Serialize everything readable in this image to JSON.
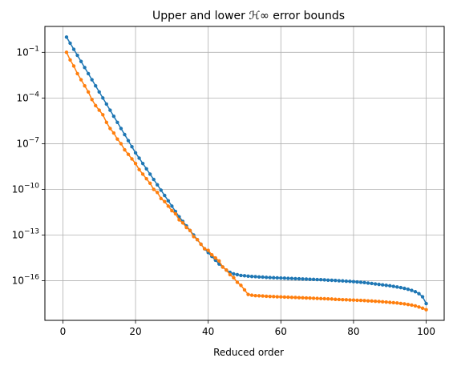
{
  "chart_data": {
    "type": "line",
    "title": "Upper and lower ℋ∞ error bounds",
    "xlabel": "Reduced order",
    "ylabel": "",
    "xlim": [
      -4.95,
      104.95
    ],
    "ylim_log10": [
      -18.6,
      0.7
    ],
    "y_scale": "log",
    "grid": true,
    "xticks": [
      0,
      20,
      40,
      60,
      80,
      100
    ],
    "yticks_exp": [
      -1,
      -4,
      -7,
      -10,
      -13,
      -16
    ],
    "series": [
      {
        "color": "#1f77b4",
        "x": [
          1,
          2,
          3,
          4,
          5,
          6,
          7,
          8,
          9,
          10,
          11,
          12,
          13,
          14,
          15,
          16,
          17,
          18,
          19,
          20,
          21,
          22,
          23,
          24,
          25,
          26,
          27,
          28,
          29,
          30,
          31,
          32,
          33,
          34,
          35,
          36,
          37,
          38,
          39,
          40,
          41,
          42,
          43,
          44,
          45,
          46,
          47,
          48,
          49,
          50,
          51,
          52,
          53,
          54,
          55,
          56,
          57,
          58,
          59,
          60,
          61,
          62,
          63,
          64,
          65,
          66,
          67,
          68,
          69,
          70,
          71,
          72,
          73,
          74,
          75,
          76,
          77,
          78,
          79,
          80,
          81,
          82,
          83,
          84,
          85,
          86,
          87,
          88,
          89,
          90,
          91,
          92,
          93,
          94,
          95,
          96,
          97,
          98,
          99,
          100
        ],
        "log10_y": [
          0.0,
          -0.4,
          -0.8,
          -1.2,
          -1.6,
          -2.0,
          -2.4,
          -2.8,
          -3.2,
          -3.6,
          -4.0,
          -4.4,
          -4.8,
          -5.2,
          -5.6,
          -6.0,
          -6.4,
          -6.8,
          -7.2,
          -7.6,
          -7.95,
          -8.3,
          -8.65,
          -9.0,
          -9.35,
          -9.7,
          -10.05,
          -10.4,
          -10.75,
          -11.1,
          -11.45,
          -11.8,
          -12.1,
          -12.4,
          -12.7,
          -13.0,
          -13.3,
          -13.6,
          -13.9,
          -14.15,
          -14.4,
          -14.65,
          -14.9,
          -15.1,
          -15.3,
          -15.45,
          -15.55,
          -15.6,
          -15.65,
          -15.67,
          -15.7,
          -15.72,
          -15.73,
          -15.75,
          -15.76,
          -15.78,
          -15.79,
          -15.8,
          -15.81,
          -15.82,
          -15.83,
          -15.84,
          -15.85,
          -15.86,
          -15.87,
          -15.88,
          -15.89,
          -15.9,
          -15.91,
          -15.92,
          -15.93,
          -15.94,
          -15.96,
          -15.97,
          -15.98,
          -16.0,
          -16.01,
          -16.03,
          -16.04,
          -16.06,
          -16.08,
          -16.1,
          -16.12,
          -16.15,
          -16.18,
          -16.21,
          -16.24,
          -16.27,
          -16.3,
          -16.33,
          -16.37,
          -16.41,
          -16.45,
          -16.5,
          -16.56,
          -16.63,
          -16.72,
          -16.85,
          -17.05,
          -17.5
        ]
      },
      {
        "color": "#ff7f0e",
        "x": [
          1,
          2,
          3,
          4,
          5,
          6,
          7,
          8,
          9,
          10,
          11,
          12,
          13,
          14,
          15,
          16,
          17,
          18,
          19,
          20,
          21,
          22,
          23,
          24,
          25,
          26,
          27,
          28,
          29,
          30,
          31,
          32,
          33,
          34,
          35,
          36,
          37,
          38,
          39,
          40,
          41,
          42,
          43,
          44,
          45,
          46,
          47,
          48,
          49,
          50,
          51,
          52,
          53,
          54,
          55,
          56,
          57,
          58,
          59,
          60,
          61,
          62,
          63,
          64,
          65,
          66,
          67,
          68,
          69,
          70,
          71,
          72,
          73,
          74,
          75,
          76,
          77,
          78,
          79,
          80,
          81,
          82,
          83,
          84,
          85,
          86,
          87,
          88,
          89,
          90,
          91,
          92,
          93,
          94,
          95,
          96,
          97,
          98,
          99,
          100
        ],
        "log10_y": [
          -1.0,
          -1.5,
          -1.9,
          -2.4,
          -2.8,
          -3.2,
          -3.6,
          -4.1,
          -4.5,
          -4.8,
          -5.1,
          -5.6,
          -6.0,
          -6.3,
          -6.7,
          -7.0,
          -7.4,
          -7.7,
          -8.0,
          -8.3,
          -8.7,
          -9.0,
          -9.3,
          -9.6,
          -10.0,
          -10.2,
          -10.6,
          -10.8,
          -11.1,
          -11.4,
          -11.6,
          -12.0,
          -12.2,
          -12.5,
          -12.7,
          -13.1,
          -13.3,
          -13.6,
          -13.9,
          -14.0,
          -14.3,
          -14.5,
          -14.7,
          -15.1,
          -15.3,
          -15.6,
          -15.8,
          -16.1,
          -16.3,
          -16.6,
          -16.9,
          -16.95,
          -16.98,
          -16.99,
          -17.0,
          -17.02,
          -17.03,
          -17.04,
          -17.05,
          -17.06,
          -17.07,
          -17.08,
          -17.09,
          -17.1,
          -17.11,
          -17.12,
          -17.13,
          -17.14,
          -17.15,
          -17.16,
          -17.17,
          -17.18,
          -17.19,
          -17.2,
          -17.22,
          -17.23,
          -17.24,
          -17.25,
          -17.26,
          -17.27,
          -17.28,
          -17.29,
          -17.3,
          -17.32,
          -17.33,
          -17.35,
          -17.36,
          -17.38,
          -17.4,
          -17.42,
          -17.44,
          -17.46,
          -17.49,
          -17.52,
          -17.56,
          -17.6,
          -17.65,
          -17.72,
          -17.8,
          -17.9
        ]
      }
    ]
  }
}
